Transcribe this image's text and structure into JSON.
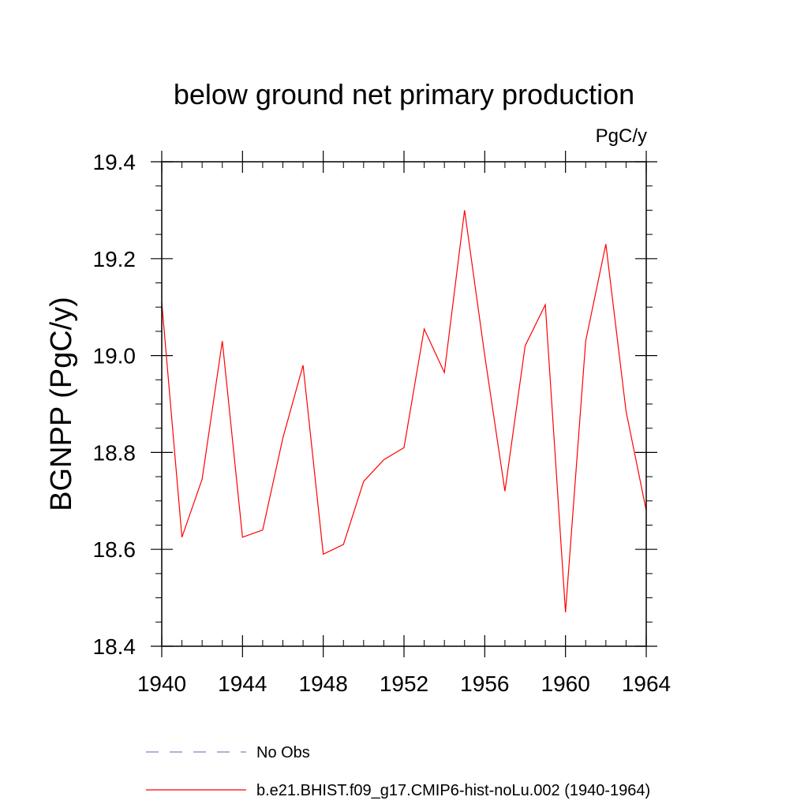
{
  "chart_data": {
    "type": "line",
    "title": "below ground net primary production",
    "units_label": "PgC/y",
    "ylabel": "BGNPP  (PgC/y)",
    "xlabel": "",
    "xlim": [
      1940,
      1964
    ],
    "ylim": [
      18.4,
      19.4
    ],
    "x_ticks": [
      1940,
      1944,
      1948,
      1952,
      1956,
      1960,
      1964
    ],
    "x_tick_labels": [
      "1940",
      "1944",
      "1948",
      "1952",
      "1956",
      "1960",
      "1964"
    ],
    "y_ticks": [
      18.4,
      18.6,
      18.8,
      19.0,
      19.2,
      19.4
    ],
    "y_tick_labels": [
      "18.4",
      "18.6",
      "18.8",
      "19.0",
      "19.2",
      "19.4"
    ],
    "grid": false,
    "legend_position": "bottom",
    "series": [
      {
        "name": "b.e21.BHIST.f09_g17.CMIP6-hist-noLu.002 (1940-1964)",
        "color": "#ff0000",
        "style": "solid",
        "x": [
          1940,
          1941,
          1942,
          1943,
          1944,
          1945,
          1946,
          1947,
          1948,
          1949,
          1950,
          1951,
          1952,
          1953,
          1954,
          1955,
          1956,
          1957,
          1958,
          1959,
          1960,
          1961,
          1962,
          1963,
          1964
        ],
        "values": [
          19.11,
          18.625,
          18.745,
          19.03,
          18.625,
          18.64,
          18.83,
          18.98,
          18.59,
          18.61,
          18.74,
          18.785,
          18.81,
          19.055,
          18.965,
          19.3,
          19.0,
          18.72,
          19.02,
          19.105,
          18.47,
          19.03,
          19.23,
          18.885,
          18.68
        ]
      }
    ],
    "legend": [
      {
        "label": "No Obs",
        "color": "#8a7fc9",
        "style": "dashed"
      },
      {
        "label": "b.e21.BHIST.f09_g17.CMIP6-hist-noLu.002 (1940-1964)",
        "color": "#ff0000",
        "style": "solid"
      }
    ]
  }
}
